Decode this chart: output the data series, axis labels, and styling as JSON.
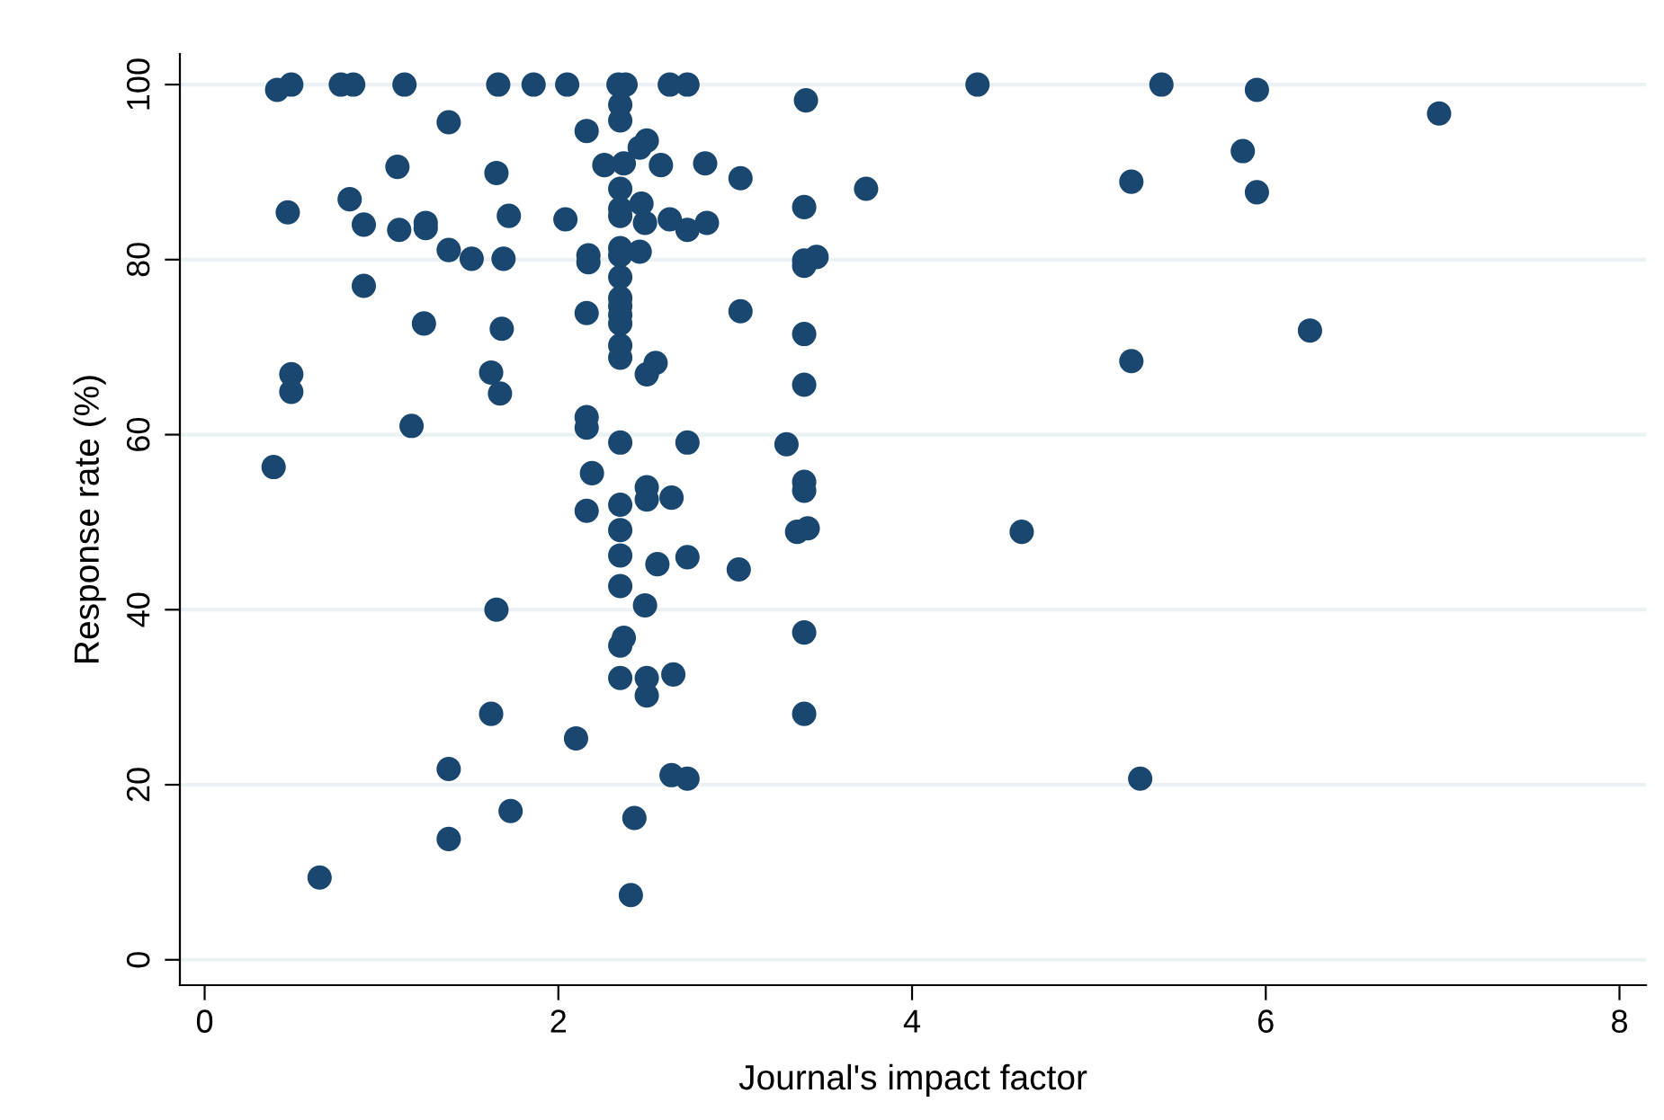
{
  "chart_data": {
    "type": "scatter",
    "xlabel": "Journal's impact factor",
    "ylabel": "Response rate (%)",
    "xlim": [
      -0.14,
      8.15
    ],
    "ylim": [
      -2.9,
      103.5
    ],
    "xticks": [
      0,
      2,
      4,
      6,
      8
    ],
    "yticks": [
      0,
      20,
      40,
      60,
      80,
      100
    ],
    "grid": "y",
    "marker": "circle",
    "series": [
      {
        "color": "#1a476f",
        "x": [
          0.41,
          0.49,
          0.77,
          0.84,
          1.13,
          1.38,
          1.66,
          1.86,
          2.05,
          2.34,
          2.38,
          2.63,
          2.73,
          0.82,
          1.09,
          1.65,
          0.47,
          0.9,
          1.1,
          1.25,
          1.25,
          1.38,
          1.51,
          1.69,
          1.72,
          2.04,
          0.9,
          1.24,
          1.68,
          0.49,
          0.49,
          1.62,
          1.67,
          1.17,
          0.39,
          1.65,
          1.62,
          1.38,
          1.38,
          1.73,
          0.65,
          2.1,
          2.35,
          2.35,
          2.16,
          2.46,
          2.5,
          2.26,
          2.37,
          2.58,
          2.83,
          3.03,
          2.35,
          2.35,
          2.35,
          2.47,
          2.49,
          2.63,
          2.73,
          2.84,
          2.17,
          2.17,
          2.35,
          2.35,
          2.46,
          2.35,
          2.35,
          2.35,
          2.35,
          2.35,
          2.16,
          3.03,
          2.35,
          2.35,
          2.5,
          2.55,
          2.16,
          2.16,
          2.35,
          2.73,
          2.19,
          2.5,
          2.5,
          2.64,
          2.35,
          2.16,
          2.35,
          2.35,
          2.56,
          2.73,
          3.02,
          2.35,
          2.49,
          2.37,
          2.35,
          2.35,
          2.5,
          2.5,
          2.65,
          2.64,
          2.73,
          2.43,
          2.41,
          3.4,
          3.74,
          3.39,
          3.39,
          3.46,
          3.39,
          3.39,
          3.39,
          3.29,
          3.39,
          3.39,
          3.35,
          3.41,
          3.39,
          3.39,
          4.37,
          4.62,
          5.41,
          5.24,
          5.24,
          5.29,
          5.87,
          5.95,
          5.95,
          6.25,
          6.98
        ],
        "values": [
          99.4,
          100,
          100,
          100,
          100,
          95.7,
          100,
          100,
          100,
          100,
          100,
          100,
          100,
          86.9,
          90.6,
          89.9,
          85.4,
          84.0,
          83.4,
          84.2,
          83.6,
          81.1,
          80.1,
          80.1,
          85.0,
          84.6,
          77.0,
          72.7,
          72.1,
          66.9,
          64.9,
          67.1,
          64.7,
          61.0,
          56.3,
          40.0,
          28.1,
          21.8,
          13.8,
          17.0,
          9.4,
          25.3,
          97.7,
          95.9,
          94.7,
          92.8,
          93.6,
          90.8,
          91.0,
          90.8,
          91.0,
          89.3,
          88.1,
          85.8,
          85.0,
          86.4,
          84.2,
          84.6,
          83.4,
          84.2,
          80.5,
          79.7,
          81.3,
          80.5,
          80.9,
          78.0,
          75.6,
          74.7,
          73.7,
          72.7,
          73.9,
          74.1,
          70.2,
          68.8,
          66.9,
          68.2,
          62.0,
          60.8,
          59.1,
          59.1,
          55.6,
          54.0,
          52.6,
          52.8,
          52.0,
          51.3,
          49.1,
          46.2,
          45.2,
          46.0,
          44.6,
          42.7,
          40.5,
          36.8,
          35.9,
          32.2,
          32.2,
          30.2,
          32.6,
          21.1,
          20.7,
          16.2,
          7.4,
          98.2,
          88.1,
          86.0,
          79.9,
          80.3,
          79.3,
          71.5,
          65.7,
          58.9,
          54.6,
          53.6,
          48.9,
          49.3,
          37.4,
          28.1,
          100,
          48.9,
          100,
          88.9,
          68.4,
          20.7,
          92.4,
          99.4,
          87.7,
          71.9,
          96.7
        ]
      }
    ]
  }
}
